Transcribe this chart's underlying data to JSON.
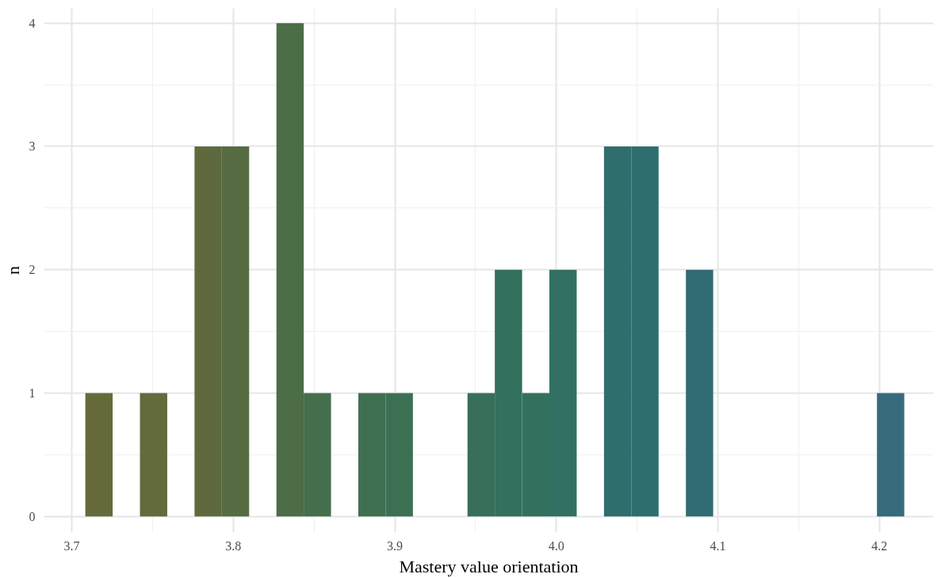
{
  "chart_data": {
    "type": "histogram",
    "xlabel": "Mastery value orientation",
    "ylabel": "n",
    "bins": [
      3.7084,
      3.7253,
      3.7422,
      3.7591,
      3.776,
      3.7929,
      3.8098,
      3.8267,
      3.8436,
      3.8605,
      3.8774,
      3.8943,
      3.9112,
      3.9281,
      3.945,
      3.9619,
      3.9788,
      3.9957,
      4.0126,
      4.0295,
      4.0464,
      4.0633,
      4.0802,
      4.0971,
      4.114,
      4.1309,
      4.1478,
      4.1647,
      4.1816,
      4.1985,
      4.2154
    ],
    "values": [
      1,
      0,
      1,
      0,
      3,
      3,
      0,
      4,
      1,
      0,
      1,
      1,
      0,
      0,
      1,
      2,
      1,
      2,
      0,
      3,
      3,
      0,
      2,
      0,
      0,
      0,
      0,
      0,
      0,
      1
    ],
    "colors": [
      "#666a3b",
      "#656a3b",
      "#636a3c",
      "#606a3d",
      "#5e6a3e",
      "#566b42",
      "#506c45",
      "#4c6d47",
      "#456f4c",
      "#416f4f",
      "#3f6f51",
      "#3c7053",
      "#3a7055",
      "#387057",
      "#376f5a",
      "#33705d",
      "#34705f",
      "#317063",
      "#306f68",
      "#2f6e6c",
      "#2e6e6f",
      "#306d72",
      "#316c74",
      "#326c75",
      "#336c76",
      "#336c77",
      "#346b78",
      "#346b79",
      "#356b79",
      "#356b7a"
    ],
    "xlim": [
      3.6828,
      4.2335
    ],
    "ylim": [
      -0.13,
      4.12
    ],
    "xticks": [
      3.7,
      3.8,
      3.9,
      {
        "value": 4.0,
        "label": "4.0"
      },
      4.1,
      4.2
    ],
    "yticks": [
      0,
      1,
      2,
      3,
      4
    ],
    "grid": true
  }
}
